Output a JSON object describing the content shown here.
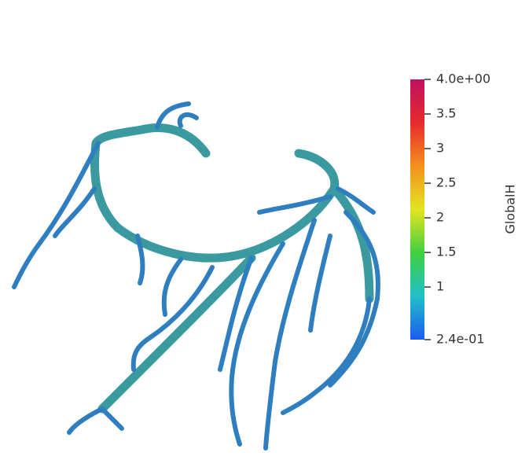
{
  "colorbar": {
    "title": "GlobalH",
    "range": [
      0.24,
      4
    ],
    "ticks": [
      {
        "value": 4,
        "label": "4.0e+00"
      },
      3.5,
      3,
      2.5,
      2,
      1.5,
      1,
      {
        "value": 0.24,
        "label": "2.4e-01"
      }
    ],
    "colors": [
      "#1a5cf0",
      "#20c0c8",
      "#40d040",
      "#e4e420",
      "#f4901c",
      "#e82a2c",
      "#c01060"
    ]
  }
}
